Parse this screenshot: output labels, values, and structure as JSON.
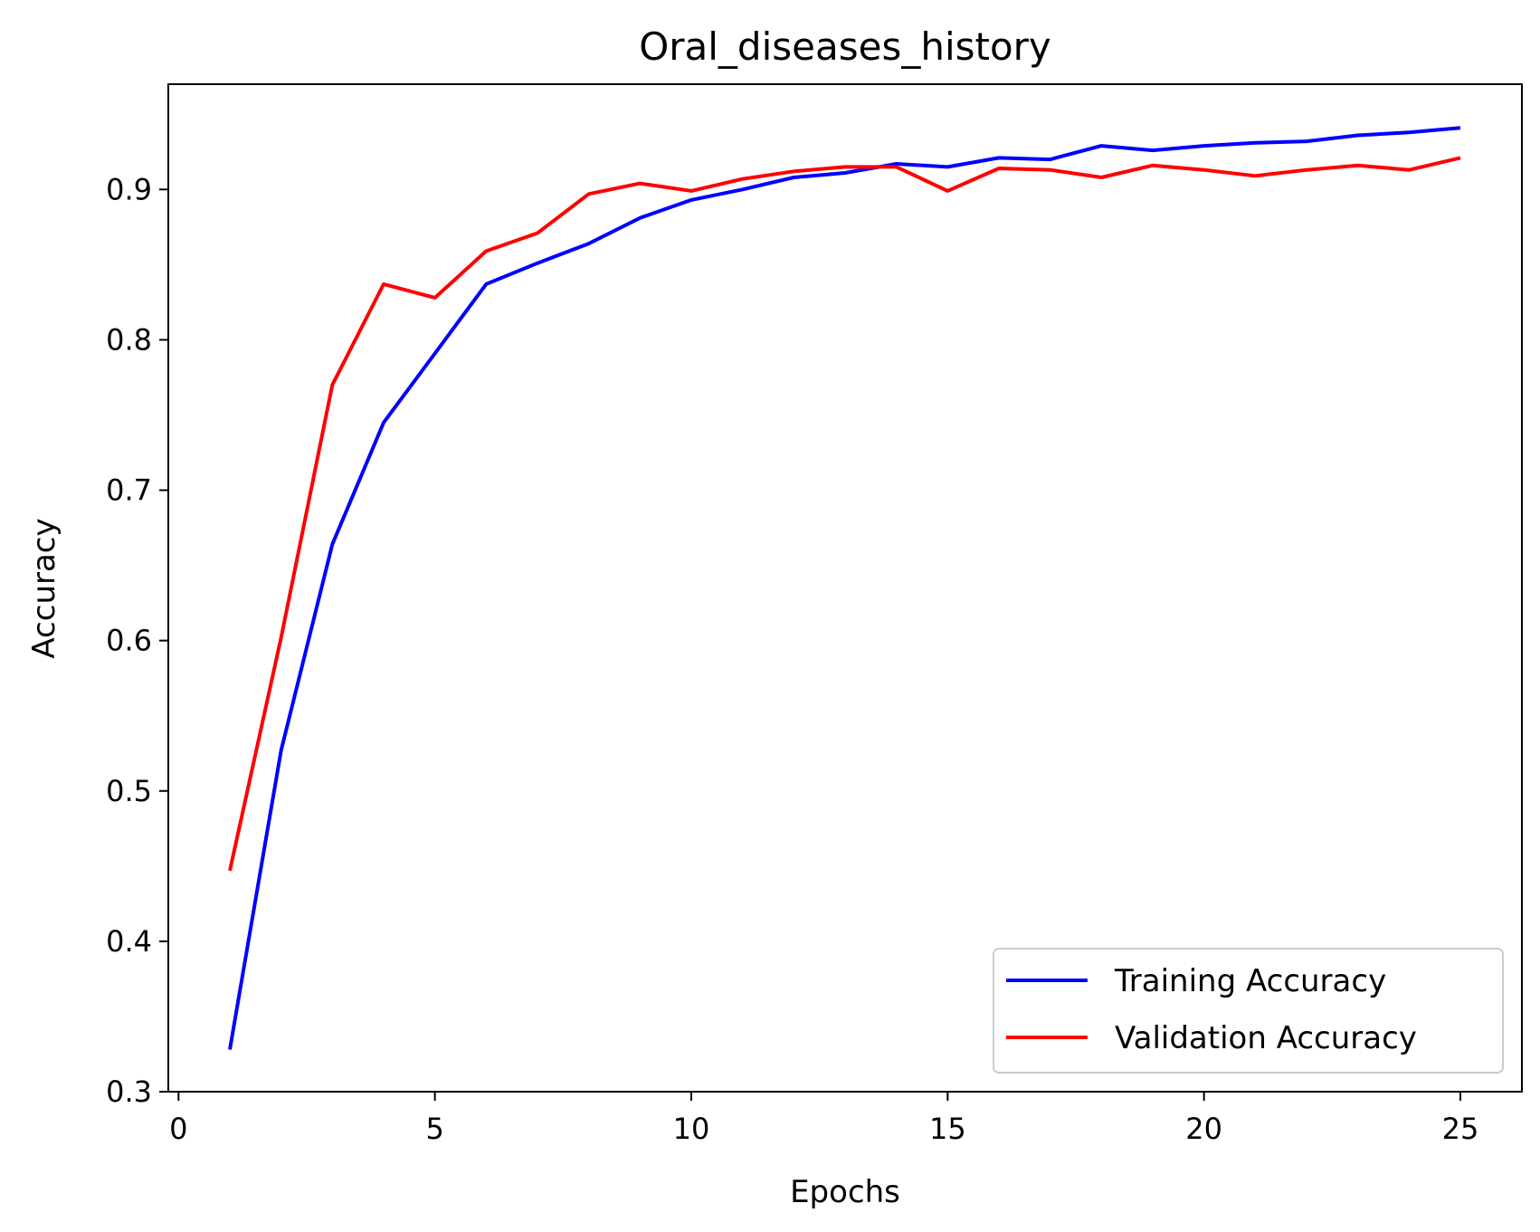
{
  "chart_data": {
    "type": "line",
    "title": "Oral_diseases_history",
    "xlabel": "Epochs",
    "ylabel": "Accuracy",
    "xlim": [
      -0.2,
      26.2
    ],
    "ylim": [
      0.3,
      0.97
    ],
    "xticks": [
      0,
      5,
      10,
      15,
      20,
      25
    ],
    "yticks": [
      0.3,
      0.4,
      0.5,
      0.6,
      0.7,
      0.8,
      0.9
    ],
    "xtick_labels": [
      "0",
      "5",
      "10",
      "15",
      "20",
      "25"
    ],
    "ytick_labels": [
      "0.3",
      "0.4",
      "0.5",
      "0.6",
      "0.7",
      "0.8",
      "0.9"
    ],
    "grid": false,
    "legend_position": "lower-right",
    "x": [
      1,
      2,
      3,
      4,
      5,
      6,
      7,
      8,
      9,
      10,
      11,
      12,
      13,
      14,
      15,
      16,
      17,
      18,
      19,
      20,
      21,
      22,
      23,
      24,
      25
    ],
    "series": [
      {
        "name": "Training Accuracy",
        "color": "#0000ff",
        "values": [
          0.328,
          0.527,
          0.664,
          0.745,
          0.791,
          0.837,
          0.851,
          0.864,
          0.881,
          0.893,
          0.9,
          0.908,
          0.911,
          0.917,
          0.915,
          0.921,
          0.92,
          0.929,
          0.926,
          0.929,
          0.931,
          0.932,
          0.936,
          0.938,
          0.941
        ]
      },
      {
        "name": "Validation Accuracy",
        "color": "#ff0000",
        "values": [
          0.447,
          0.602,
          0.77,
          0.837,
          0.828,
          0.859,
          0.871,
          0.897,
          0.904,
          0.899,
          0.907,
          0.912,
          0.915,
          0.915,
          0.899,
          0.914,
          0.913,
          0.908,
          0.916,
          0.913,
          0.909,
          0.913,
          0.916,
          0.913,
          0.921
        ]
      }
    ]
  }
}
